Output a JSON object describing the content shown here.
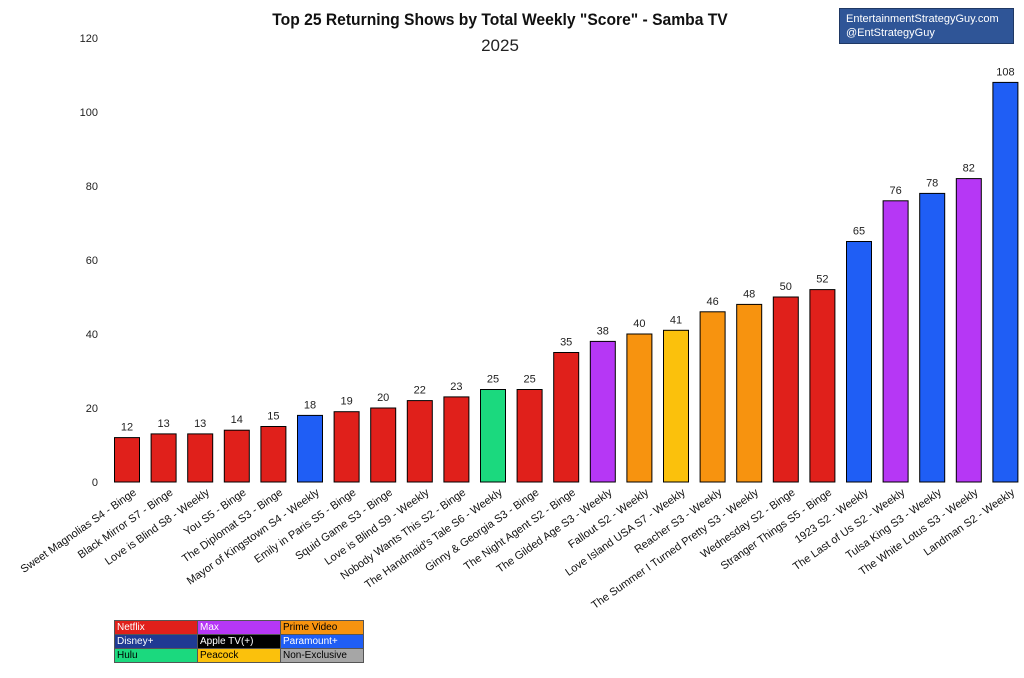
{
  "credit": {
    "line1": "EntertainmentStrategyGuy.com",
    "line2": "@EntStrategyGuy"
  },
  "legend": [
    {
      "label": "Netflix",
      "color": "#e0201b",
      "text_color": "#ffffff"
    },
    {
      "label": "Max",
      "color": "#b637f5",
      "text_color": "#ffffff"
    },
    {
      "label": "Prime Video",
      "color": "#f7930f",
      "text_color": "#000000"
    },
    {
      "label": "Disney+",
      "color": "#1f3a93",
      "text_color": "#ffffff"
    },
    {
      "label": "Apple TV(+)",
      "color": "#000000",
      "text_color": "#ffffff"
    },
    {
      "label": "Paramount+",
      "color": "#1f5ef5",
      "text_color": "#ffffff"
    },
    {
      "label": "Hulu",
      "color": "#1bd97e",
      "text_color": "#000000"
    },
    {
      "label": "Peacock",
      "color": "#fbc10c",
      "text_color": "#000000"
    },
    {
      "label": "Non-Exclusive",
      "color": "#a6a6a6",
      "text_color": "#000000"
    }
  ],
  "chart_data": {
    "type": "bar",
    "title": "Top 25 Returning Shows by Total Weekly \"Score\" - Samba TV",
    "subtitle": "2025",
    "xlabel": "",
    "ylabel": "",
    "ylim": [
      0,
      120
    ],
    "yticks": [
      0,
      20,
      40,
      60,
      80,
      100,
      120
    ],
    "grid": false,
    "legend_position": "bottom-left",
    "categories": [
      "Sweet Magnolias S4 - Binge",
      "Black Mirror S7 - Binge",
      "Love is Blind S8 - Weekly",
      "You S5 - Binge",
      "The Diplomat S3 - Binge",
      "Mayor of Kingstown S4 - Weekly",
      "Emily in Paris S5 - Binge",
      "Squid Game S3 - Binge",
      "Love is Blind S9 - Weekly",
      "Nobody Wants This S2 - Binge",
      "The Handmaid's Tale S6 - Weekly",
      "Ginny & Georgia S3 - Binge",
      "The Night Agent S2 - Binge",
      "The Gilded Age S3 - Weekly",
      "Fallout S2 - Weekly",
      "Love Island USA S7 - Weekly",
      "Reacher S3 - Weekly",
      "The Summer I Turned Pretty S3 - Weekly",
      "Wednesday S2 - Binge",
      "Stranger Things S5 - Binge",
      "1923 S2 - Weekly",
      "The Last of Us S2 - Weekly",
      "Tulsa King S3 - Weekly",
      "The White Lotus S3 - Weekly",
      "Landman S2 - Weekly"
    ],
    "values": [
      12,
      13,
      13,
      14,
      15,
      18,
      19,
      20,
      22,
      23,
      25,
      25,
      35,
      38,
      40,
      41,
      46,
      48,
      50,
      52,
      65,
      76,
      78,
      82,
      108
    ],
    "bar_colors": [
      "#e0201b",
      "#e0201b",
      "#e0201b",
      "#e0201b",
      "#e0201b",
      "#1f5ef5",
      "#e0201b",
      "#e0201b",
      "#e0201b",
      "#e0201b",
      "#1bd97e",
      "#e0201b",
      "#e0201b",
      "#b637f5",
      "#f7930f",
      "#fbc10c",
      "#f7930f",
      "#f7930f",
      "#e0201b",
      "#e0201b",
      "#1f5ef5",
      "#b637f5",
      "#1f5ef5",
      "#b637f5",
      "#1f5ef5"
    ]
  }
}
